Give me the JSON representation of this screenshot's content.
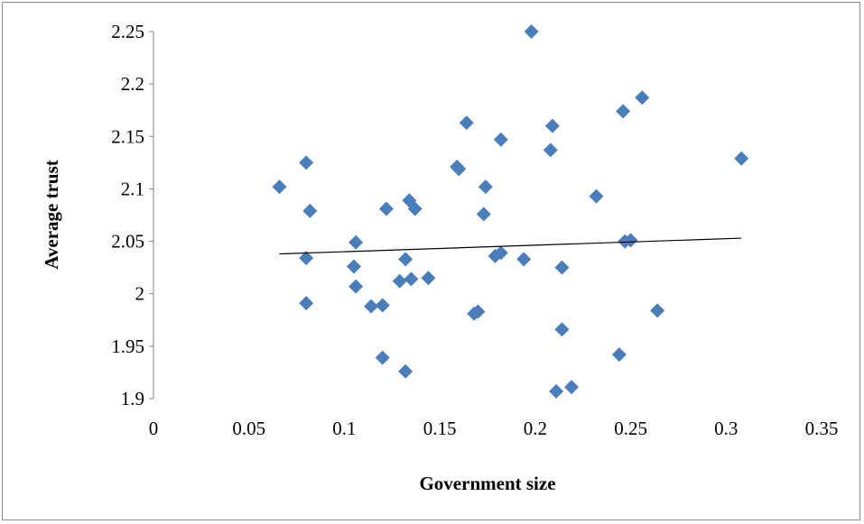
{
  "chart_data": {
    "type": "scatter",
    "xlabel": "Government size",
    "ylabel": "Average trust",
    "xlim": [
      0,
      0.35
    ],
    "ylim": [
      1.9,
      2.25
    ],
    "x_ticks": [
      "0",
      "0.05",
      "0.1",
      "0.15",
      "0.2",
      "0.25",
      "0.3",
      "0.35"
    ],
    "y_ticks": [
      "1.9",
      "1.95",
      "2",
      "2.05",
      "2.1",
      "2.15",
      "2.2",
      "2.25"
    ],
    "grid": false,
    "legend": "none",
    "marker_color": "#4a7ebb",
    "trendline": {
      "x": [
        0.066,
        0.308
      ],
      "y": [
        2.038,
        2.053
      ],
      "color": "#000000"
    },
    "points": [
      {
        "x": 0.066,
        "y": 2.102
      },
      {
        "x": 0.08,
        "y": 2.125
      },
      {
        "x": 0.082,
        "y": 2.079
      },
      {
        "x": 0.08,
        "y": 2.034
      },
      {
        "x": 0.08,
        "y": 1.991
      },
      {
        "x": 0.106,
        "y": 2.049
      },
      {
        "x": 0.105,
        "y": 2.026
      },
      {
        "x": 0.106,
        "y": 2.007
      },
      {
        "x": 0.114,
        "y": 1.988
      },
      {
        "x": 0.12,
        "y": 1.989
      },
      {
        "x": 0.12,
        "y": 1.939
      },
      {
        "x": 0.122,
        "y": 2.081
      },
      {
        "x": 0.129,
        "y": 2.012
      },
      {
        "x": 0.132,
        "y": 2.033
      },
      {
        "x": 0.132,
        "y": 1.926
      },
      {
        "x": 0.134,
        "y": 2.089
      },
      {
        "x": 0.135,
        "y": 2.014
      },
      {
        "x": 0.137,
        "y": 2.081
      },
      {
        "x": 0.144,
        "y": 2.015
      },
      {
        "x": 0.159,
        "y": 2.121
      },
      {
        "x": 0.16,
        "y": 2.119
      },
      {
        "x": 0.164,
        "y": 2.163
      },
      {
        "x": 0.168,
        "y": 1.981
      },
      {
        "x": 0.17,
        "y": 1.983
      },
      {
        "x": 0.173,
        "y": 2.076
      },
      {
        "x": 0.174,
        "y": 2.102
      },
      {
        "x": 0.179,
        "y": 2.036
      },
      {
        "x": 0.182,
        "y": 2.147
      },
      {
        "x": 0.182,
        "y": 2.039
      },
      {
        "x": 0.194,
        "y": 2.033
      },
      {
        "x": 0.198,
        "y": 2.25
      },
      {
        "x": 0.208,
        "y": 2.137
      },
      {
        "x": 0.209,
        "y": 2.16
      },
      {
        "x": 0.211,
        "y": 1.907
      },
      {
        "x": 0.214,
        "y": 2.025
      },
      {
        "x": 0.214,
        "y": 1.966
      },
      {
        "x": 0.219,
        "y": 1.911
      },
      {
        "x": 0.232,
        "y": 2.093
      },
      {
        "x": 0.244,
        "y": 1.942
      },
      {
        "x": 0.246,
        "y": 2.174
      },
      {
        "x": 0.247,
        "y": 2.05
      },
      {
        "x": 0.25,
        "y": 2.051
      },
      {
        "x": 0.256,
        "y": 2.187
      },
      {
        "x": 0.264,
        "y": 1.984
      },
      {
        "x": 0.308,
        "y": 2.129
      }
    ]
  }
}
